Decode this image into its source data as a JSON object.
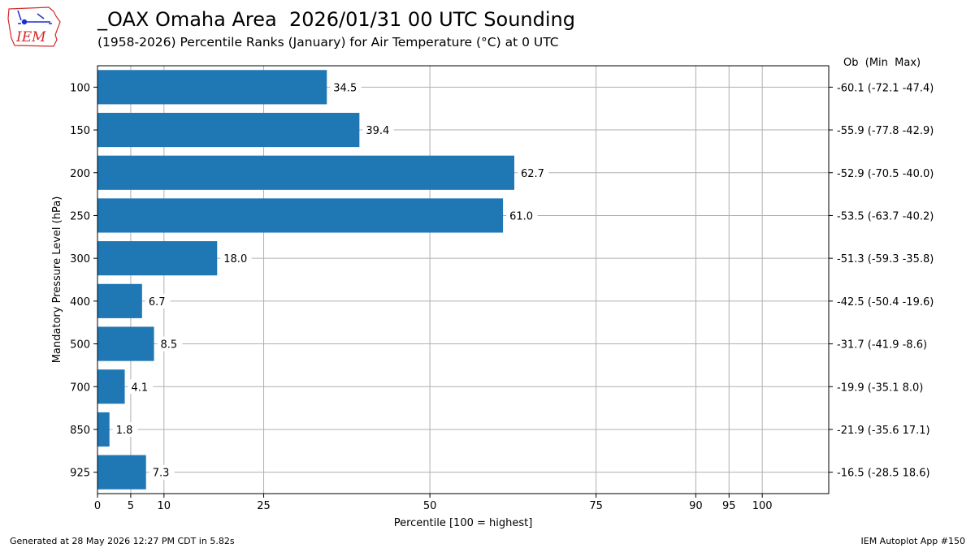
{
  "header": {
    "title": "_OAX Omaha Area  2026/01/31 00 UTC Sounding",
    "subtitle": "(1958-2026) Percentile Ranks (January) for Air Temperature (°C) at 0 UTC",
    "logo_text": "IEM"
  },
  "footer": {
    "left": "Generated at 28 May 2026 12:27 PM CDT in 5.82s",
    "right": "IEM Autoplot App #150"
  },
  "colors": {
    "bar": "#1f77b4",
    "grid": "#b0b0b0",
    "logo_red": "#d42a2a",
    "logo_blue": "#1a2fd0"
  },
  "chart_data": {
    "type": "bar",
    "orientation": "horizontal",
    "xlabel": "Percentile [100 = highest]",
    "ylabel": "Mandatory Pressure Level (hPa)",
    "right_header": "Ob  (Min  Max)",
    "xlim": [
      0,
      110
    ],
    "xticks": [
      0,
      5,
      10,
      25,
      50,
      75,
      90,
      95,
      100
    ],
    "grid": true,
    "categories": [
      "100",
      "150",
      "200",
      "250",
      "300",
      "400",
      "500",
      "700",
      "850",
      "925"
    ],
    "values": [
      34.5,
      39.4,
      62.7,
      61.0,
      18.0,
      6.7,
      8.5,
      4.1,
      1.8,
      7.3
    ],
    "value_labels": [
      "34.5",
      "39.4",
      "62.7",
      "61.0",
      "18.0",
      "6.7",
      "8.5",
      "4.1",
      "1.8",
      "7.3"
    ],
    "right_labels": [
      "-60.1 (-72.1 -47.4)",
      "-55.9 (-77.8 -42.9)",
      "-52.9 (-70.5 -40.0)",
      "-53.5 (-63.7 -40.2)",
      "-51.3 (-59.3 -35.8)",
      "-42.5 (-50.4 -19.6)",
      "-31.7 (-41.9 -8.6)",
      "-19.9 (-35.1 8.0)",
      "-21.9 (-35.6 17.1)",
      "-16.5 (-28.5 18.6)"
    ]
  }
}
